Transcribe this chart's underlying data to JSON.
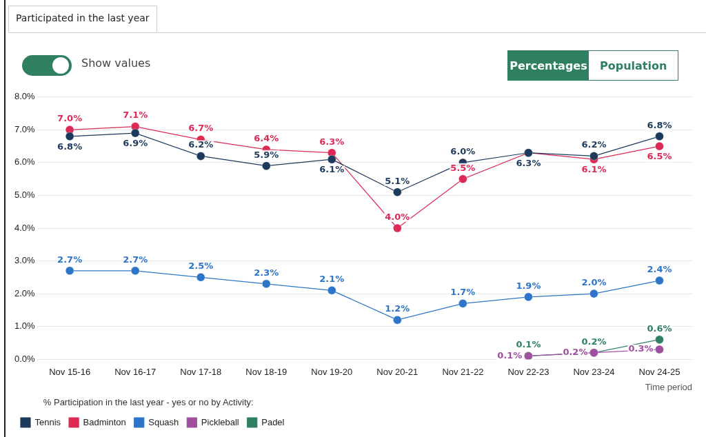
{
  "chart_data": {
    "type": "line",
    "title": "Participated in the last year",
    "xlabel": "Time period",
    "legend_title": "% Participation in the last year - yes or no by Activity:",
    "annotations": [
      "Show values",
      "Percentages",
      "Population"
    ],
    "categories": [
      "Nov 15-16",
      "Nov 16-17",
      "Nov 17-18",
      "Nov 18-19",
      "Nov 19-20",
      "Nov 20-21",
      "Nov 21-22",
      "Nov 22-23",
      "Nov 23-24",
      "Nov 24-25"
    ],
    "series": [
      {
        "name": "Tennis",
        "color": "#1b3a5c",
        "values": [
          6.8,
          6.9,
          6.2,
          5.9,
          6.1,
          5.1,
          6.0,
          6.3,
          6.2,
          6.8
        ],
        "value_labels": [
          "6.8%",
          "6.9%",
          "6.2%",
          "5.9%",
          "6.1%",
          "5.1%",
          "6.0%",
          "6.3%",
          "6.2%",
          "6.8%"
        ]
      },
      {
        "name": "Badminton",
        "color": "#dc2a55",
        "values": [
          7.0,
          7.1,
          6.7,
          6.4,
          6.3,
          4.0,
          5.5,
          6.3,
          6.1,
          6.5
        ],
        "value_labels": [
          "7.0%",
          "7.1%",
          "6.7%",
          "6.4%",
          "6.3%",
          "4.0%",
          "5.5%",
          null,
          "6.1%",
          "6.5%"
        ]
      },
      {
        "name": "Squash",
        "color": "#2e74c9",
        "values": [
          2.7,
          2.7,
          2.5,
          2.3,
          2.1,
          1.2,
          1.7,
          1.9,
          2.0,
          2.4
        ],
        "value_labels": [
          "2.7%",
          "2.7%",
          "2.5%",
          "2.3%",
          "2.1%",
          "1.2%",
          "1.7%",
          "1.9%",
          "2.0%",
          "2.4%"
        ]
      },
      {
        "name": "Pickleball",
        "color": "#a04fa0",
        "values": [
          null,
          null,
          null,
          null,
          null,
          null,
          null,
          0.1,
          0.2,
          0.3
        ],
        "value_labels": [
          null,
          null,
          null,
          null,
          null,
          null,
          null,
          "0.1%",
          "0.2%",
          "0.3%"
        ]
      },
      {
        "name": "Padel",
        "color": "#2e8060",
        "values": [
          null,
          null,
          null,
          null,
          null,
          null,
          null,
          0.1,
          0.2,
          0.6
        ],
        "value_labels": [
          null,
          null,
          null,
          null,
          null,
          null,
          null,
          "0.1%",
          "0.2%",
          "0.6%"
        ]
      }
    ],
    "ylim": [
      0,
      8
    ],
    "yticks": [
      {
        "value": 0,
        "label": "0.0%"
      },
      {
        "value": 1,
        "label": "1.0%"
      },
      {
        "value": 2,
        "label": "2.0%"
      },
      {
        "value": 3,
        "label": "3.0%"
      },
      {
        "value": 4,
        "label": "4.0%"
      },
      {
        "value": 5,
        "label": "5.0%"
      },
      {
        "value": 6,
        "label": "6.0%"
      },
      {
        "value": 7,
        "label": "7.0%"
      },
      {
        "value": 8,
        "label": "8.0%"
      }
    ],
    "grid": "y",
    "legend": "bottom",
    "marker": "circle",
    "line_style": "solid"
  }
}
